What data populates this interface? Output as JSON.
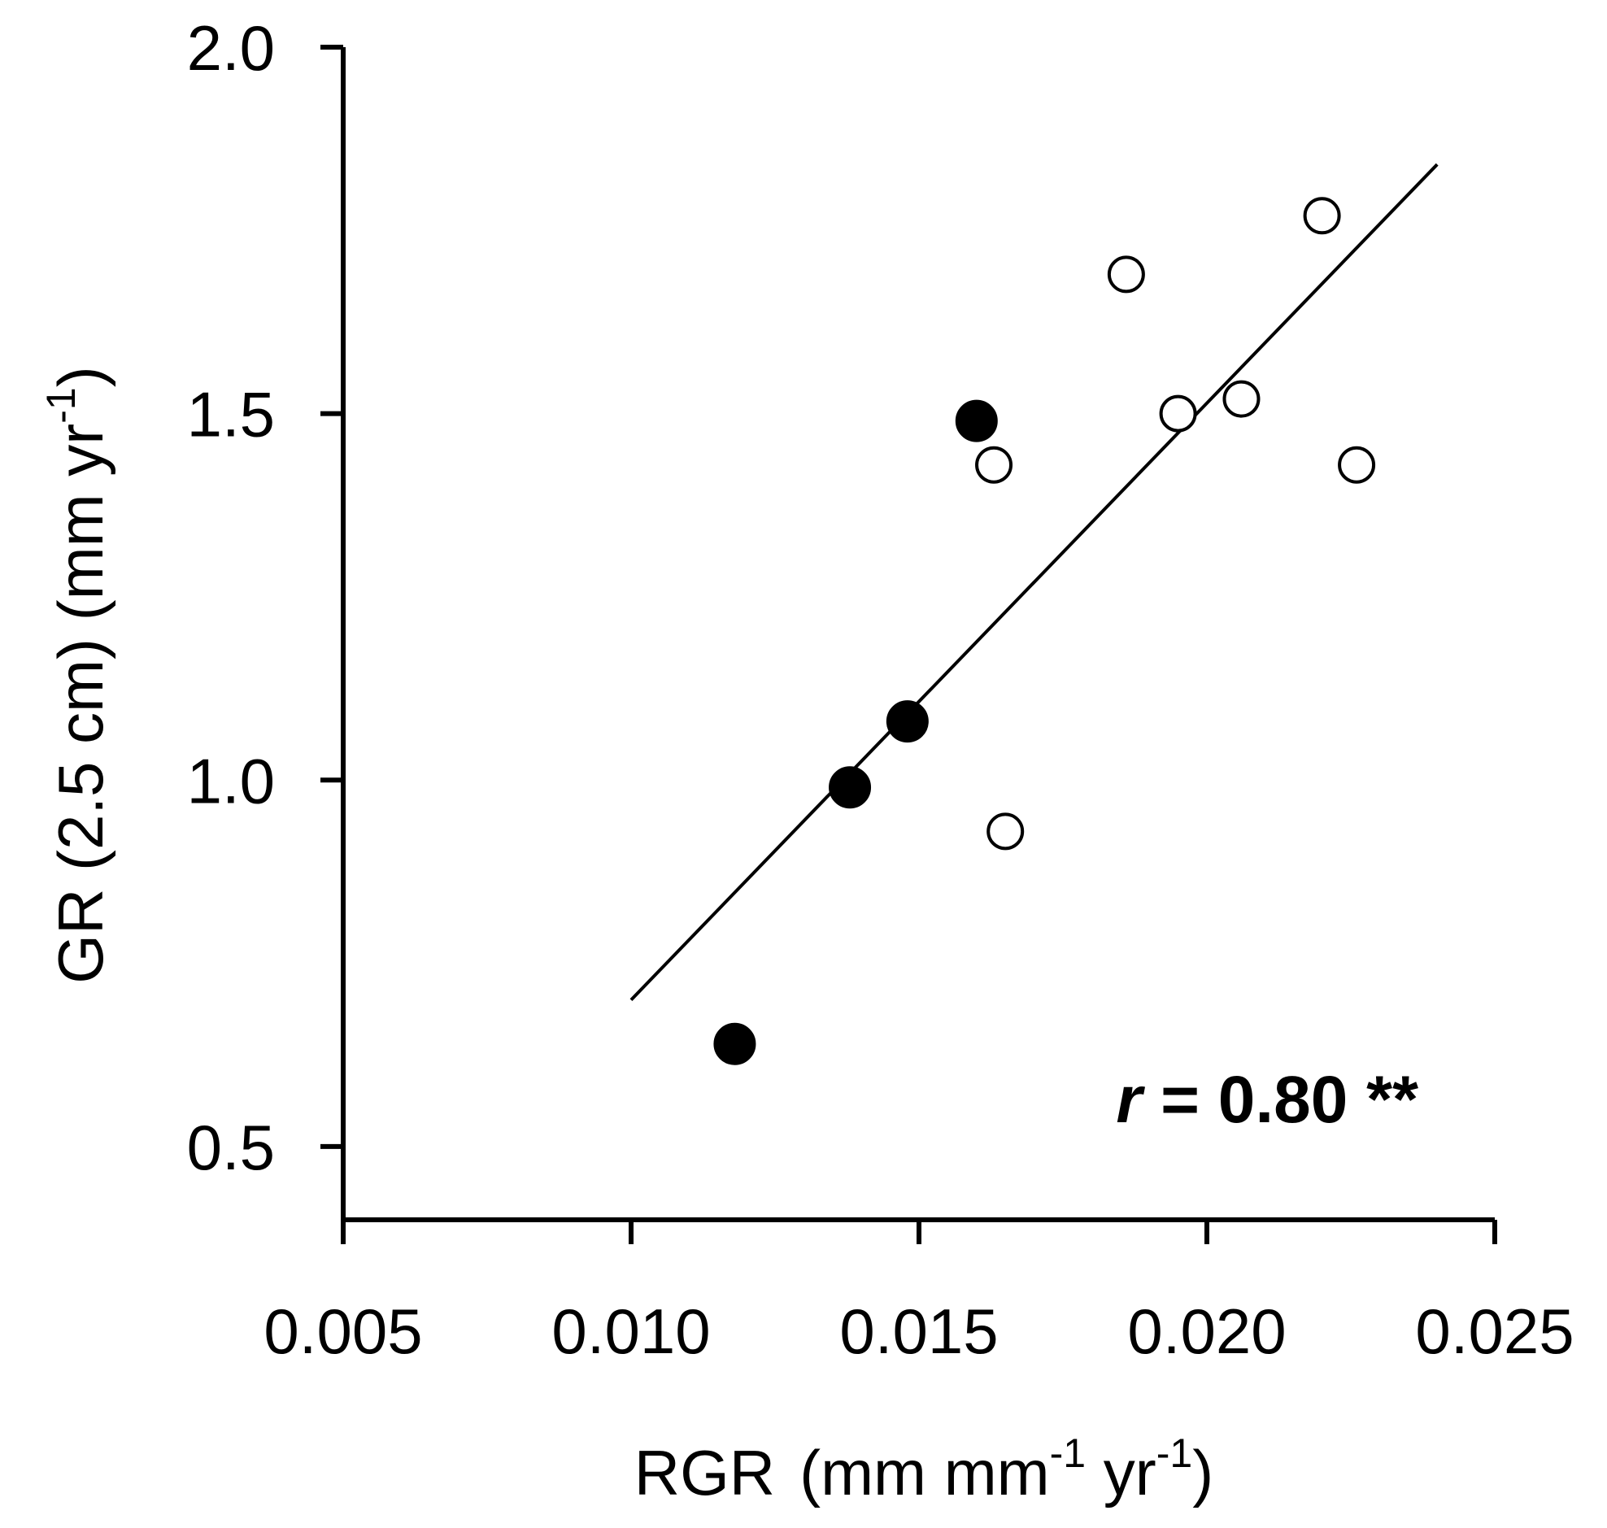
{
  "chart_data": {
    "type": "scatter",
    "title": "",
    "xlabel": {
      "text": "RGR",
      "units_open": "(mm mm",
      "units_sup1": "-1",
      "units_mid": " yr",
      "units_sup2": "-1",
      "units_close": ")"
    },
    "ylabel": {
      "text": "GR (2.5 cm) (mm yr",
      "sup": "-1",
      "close": ")"
    },
    "xlim": [
      0.005,
      0.025
    ],
    "ylim": [
      0.4,
      2.0
    ],
    "xticks": [
      0.005,
      0.01,
      0.015,
      0.02,
      0.025
    ],
    "xtick_labels": [
      "0.005",
      "0.010",
      "0.015",
      "0.020",
      "0.025"
    ],
    "yticks": [
      0.5,
      1.0,
      1.5,
      2.0
    ],
    "ytick_labels": [
      "0.5",
      "1.0",
      "1.5",
      "2.0"
    ],
    "series": [
      {
        "name": "filled",
        "marker": "filled-circle",
        "color": "#000000",
        "points": [
          {
            "x": 0.0118,
            "y": 0.64
          },
          {
            "x": 0.0138,
            "y": 0.99
          },
          {
            "x": 0.0148,
            "y": 1.08
          },
          {
            "x": 0.016,
            "y": 1.49
          }
        ]
      },
      {
        "name": "open",
        "marker": "open-circle",
        "color": "#000000",
        "points": [
          {
            "x": 0.0163,
            "y": 1.43
          },
          {
            "x": 0.0165,
            "y": 0.93
          },
          {
            "x": 0.0186,
            "y": 1.69
          },
          {
            "x": 0.0195,
            "y": 1.5
          },
          {
            "x": 0.0206,
            "y": 1.52
          },
          {
            "x": 0.022,
            "y": 1.77
          },
          {
            "x": 0.0226,
            "y": 1.43
          }
        ]
      }
    ],
    "fit_line": {
      "x": [
        0.01,
        0.024
      ],
      "y": [
        0.7,
        1.84
      ]
    },
    "annotation": {
      "italic": "r",
      "rest": " = 0.80 **",
      "placement": "bottom-right"
    }
  }
}
